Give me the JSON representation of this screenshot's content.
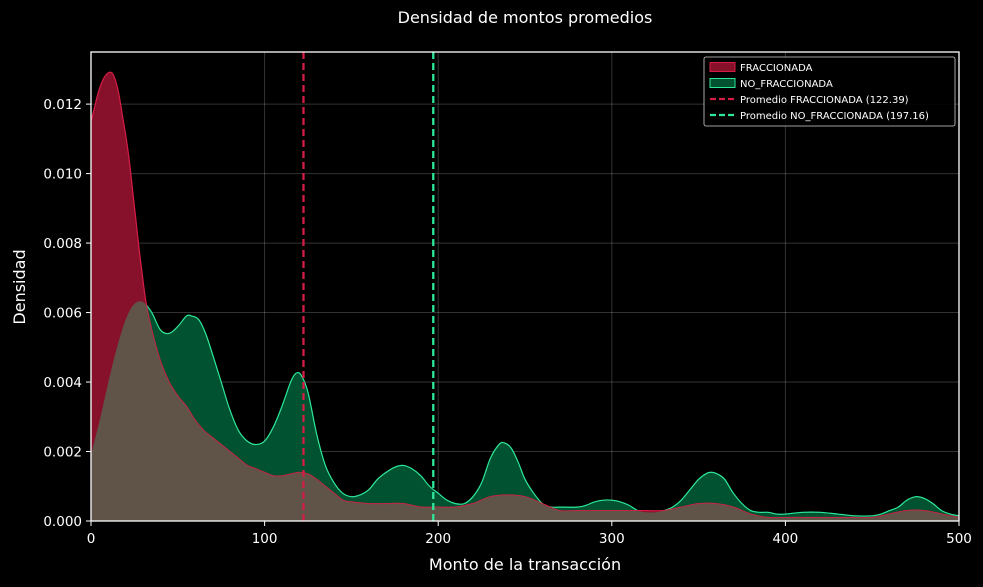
{
  "chart_data": {
    "type": "area",
    "title": "Densidad de montos promedios",
    "xlabel": "Monto de la transacción",
    "ylabel": "Densidad",
    "xlim": [
      0,
      500
    ],
    "ylim": [
      0,
      0.0135
    ],
    "x_ticks": [
      0,
      100,
      200,
      300,
      400,
      500
    ],
    "y_ticks": [
      0.0,
      0.002,
      0.004,
      0.006,
      0.008,
      0.01,
      0.012
    ],
    "y_tick_labels": [
      "0.000",
      "0.002",
      "0.004",
      "0.006",
      "0.008",
      "0.010",
      "0.012"
    ],
    "grid": true,
    "legend_position": "top-right",
    "background": "#000000",
    "series": [
      {
        "name": "NO_FRACCIONADA",
        "kind": "kde-area",
        "fill": "#005230",
        "stroke": "#2ee89a",
        "points": [
          [
            0,
            0.0019
          ],
          [
            5,
            0.0029
          ],
          [
            10,
            0.004
          ],
          [
            15,
            0.005
          ],
          [
            20,
            0.0058
          ],
          [
            25,
            0.00625
          ],
          [
            30,
            0.0063
          ],
          [
            35,
            0.006
          ],
          [
            40,
            0.0055
          ],
          [
            45,
            0.0054
          ],
          [
            50,
            0.0056
          ],
          [
            55,
            0.0059
          ],
          [
            58,
            0.0059
          ],
          [
            62,
            0.0058
          ],
          [
            66,
            0.0054
          ],
          [
            70,
            0.0048
          ],
          [
            75,
            0.004
          ],
          [
            80,
            0.0032
          ],
          [
            85,
            0.0026
          ],
          [
            90,
            0.0023
          ],
          [
            95,
            0.0022
          ],
          [
            100,
            0.0023
          ],
          [
            105,
            0.0027
          ],
          [
            110,
            0.0033
          ],
          [
            115,
            0.004
          ],
          [
            118,
            0.00425
          ],
          [
            121,
            0.0042
          ],
          [
            125,
            0.0037
          ],
          [
            130,
            0.0025
          ],
          [
            135,
            0.0016
          ],
          [
            140,
            0.0011
          ],
          [
            145,
            0.0008
          ],
          [
            150,
            0.0007
          ],
          [
            155,
            0.00075
          ],
          [
            160,
            0.0009
          ],
          [
            165,
            0.0012
          ],
          [
            170,
            0.0014
          ],
          [
            175,
            0.00155
          ],
          [
            180,
            0.0016
          ],
          [
            185,
            0.0015
          ],
          [
            190,
            0.0013
          ],
          [
            195,
            0.001
          ],
          [
            200,
            0.0008
          ],
          [
            205,
            0.0006
          ],
          [
            210,
            0.0005
          ],
          [
            215,
            0.0005
          ],
          [
            220,
            0.0007
          ],
          [
            225,
            0.0011
          ],
          [
            230,
            0.0018
          ],
          [
            235,
            0.0022
          ],
          [
            238,
            0.00225
          ],
          [
            242,
            0.0021
          ],
          [
            246,
            0.0017
          ],
          [
            250,
            0.0012
          ],
          [
            255,
            0.0008
          ],
          [
            260,
            0.0005
          ],
          [
            265,
            0.0004
          ],
          [
            270,
            0.0004
          ],
          [
            280,
            0.0004
          ],
          [
            285,
            0.00045
          ],
          [
            290,
            0.00055
          ],
          [
            295,
            0.0006
          ],
          [
            300,
            0.0006
          ],
          [
            305,
            0.00055
          ],
          [
            310,
            0.00045
          ],
          [
            315,
            0.0003
          ],
          [
            320,
            0.00025
          ],
          [
            325,
            0.00025
          ],
          [
            330,
            0.0003
          ],
          [
            335,
            0.0004
          ],
          [
            340,
            0.0006
          ],
          [
            345,
            0.0009
          ],
          [
            350,
            0.0012
          ],
          [
            355,
            0.00138
          ],
          [
            358,
            0.0014
          ],
          [
            361,
            0.00135
          ],
          [
            365,
            0.0012
          ],
          [
            370,
            0.0008
          ],
          [
            375,
            0.0005
          ],
          [
            380,
            0.0003
          ],
          [
            385,
            0.00025
          ],
          [
            390,
            0.00025
          ],
          [
            395,
            0.0002
          ],
          [
            400,
            0.0002
          ],
          [
            410,
            0.00025
          ],
          [
            420,
            0.00025
          ],
          [
            430,
            0.0002
          ],
          [
            440,
            0.00015
          ],
          [
            450,
            0.00015
          ],
          [
            455,
            0.0002
          ],
          [
            460,
            0.0003
          ],
          [
            465,
            0.0004
          ],
          [
            470,
            0.0006
          ],
          [
            475,
            0.0007
          ],
          [
            480,
            0.00065
          ],
          [
            485,
            0.0005
          ],
          [
            490,
            0.0003
          ],
          [
            495,
            0.0002
          ],
          [
            500,
            0.00015
          ]
        ]
      },
      {
        "name": "FRACCIONADA",
        "kind": "kde-area",
        "fill": "#87102a",
        "stroke": "#d41d45",
        "points": [
          [
            0,
            0.0115
          ],
          [
            2,
            0.0119
          ],
          [
            4,
            0.0123
          ],
          [
            6,
            0.0126
          ],
          [
            8,
            0.0128
          ],
          [
            10,
            0.0129
          ],
          [
            12,
            0.0129
          ],
          [
            14,
            0.0127
          ],
          [
            16,
            0.0123
          ],
          [
            18,
            0.0117
          ],
          [
            20,
            0.0111
          ],
          [
            22,
            0.0104
          ],
          [
            24,
            0.0095
          ],
          [
            26,
            0.0086
          ],
          [
            28,
            0.0077
          ],
          [
            30,
            0.0069
          ],
          [
            32,
            0.0062
          ],
          [
            35,
            0.0055
          ],
          [
            40,
            0.0046
          ],
          [
            45,
            0.004
          ],
          [
            50,
            0.0036
          ],
          [
            55,
            0.0033
          ],
          [
            60,
            0.0029
          ],
          [
            65,
            0.0026
          ],
          [
            70,
            0.0024
          ],
          [
            75,
            0.0022
          ],
          [
            80,
            0.002
          ],
          [
            85,
            0.0018
          ],
          [
            90,
            0.0016
          ],
          [
            95,
            0.0015
          ],
          [
            100,
            0.0014
          ],
          [
            105,
            0.0013
          ],
          [
            110,
            0.0013
          ],
          [
            115,
            0.00135
          ],
          [
            120,
            0.0014
          ],
          [
            125,
            0.00135
          ],
          [
            130,
            0.0012
          ],
          [
            135,
            0.001
          ],
          [
            140,
            0.0008
          ],
          [
            145,
            0.0006
          ],
          [
            150,
            0.00055
          ],
          [
            160,
            0.0005
          ],
          [
            170,
            0.0005
          ],
          [
            180,
            0.0005
          ],
          [
            190,
            0.0004
          ],
          [
            200,
            0.0004
          ],
          [
            210,
            0.0004
          ],
          [
            220,
            0.0005
          ],
          [
            230,
            0.0007
          ],
          [
            240,
            0.00075
          ],
          [
            250,
            0.0007
          ],
          [
            260,
            0.0005
          ],
          [
            270,
            0.0003
          ],
          [
            280,
            0.0003
          ],
          [
            290,
            0.0003
          ],
          [
            300,
            0.0003
          ],
          [
            310,
            0.0003
          ],
          [
            320,
            0.0003
          ],
          [
            330,
            0.0003
          ],
          [
            340,
            0.0004
          ],
          [
            350,
            0.0005
          ],
          [
            360,
            0.0005
          ],
          [
            370,
            0.0004
          ],
          [
            380,
            0.0002
          ],
          [
            390,
            0.0001
          ],
          [
            400,
            0.0001
          ],
          [
            420,
            0.0001
          ],
          [
            440,
            0.0001
          ],
          [
            450,
            0.0001
          ],
          [
            460,
            0.0002
          ],
          [
            470,
            0.0003
          ],
          [
            480,
            0.0003
          ],
          [
            490,
            0.0002
          ],
          [
            500,
            0.0001
          ]
        ]
      }
    ],
    "vlines": [
      {
        "name": "Promedio FRACCIONADA (122.39)",
        "x": 122.39,
        "color": "#d41d45"
      },
      {
        "name": "Promedio NO_FRACCIONADA (197.16)",
        "x": 197.16,
        "color": "#2ee89a"
      }
    ],
    "overlap_color": "#5f5447",
    "legend": [
      {
        "label": "FRACCIONADA",
        "kind": "patch",
        "fill": "#87102a",
        "stroke": "#d41d45"
      },
      {
        "label": "NO_FRACCIONADA",
        "kind": "patch",
        "fill": "#005230",
        "stroke": "#2ee89a"
      },
      {
        "label": "Promedio FRACCIONADA (122.39)",
        "kind": "dashed-line",
        "stroke": "#d41d45"
      },
      {
        "label": "Promedio NO_FRACCIONADA (197.16)",
        "kind": "dashed-line",
        "stroke": "#2ee89a"
      }
    ]
  }
}
